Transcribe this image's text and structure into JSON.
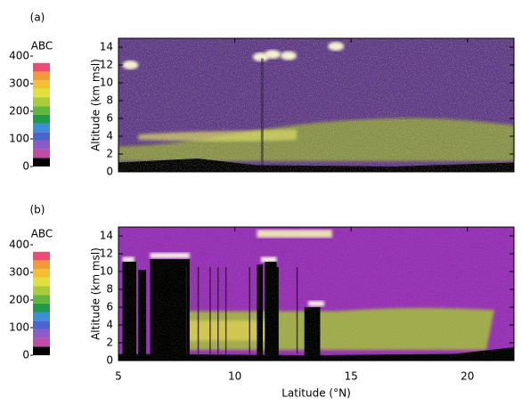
{
  "chart_data": [
    {
      "type": "curtain",
      "panel_label": "(a)",
      "ylabel": "Altitude (km msl)",
      "xlim": [
        5,
        22
      ],
      "xticks": [
        5,
        10,
        15,
        20
      ],
      "ylim": [
        0,
        15
      ],
      "yticks": [
        0,
        2,
        4,
        6,
        8,
        10,
        12,
        14
      ],
      "colorbar": {
        "label": "ABC",
        "clim": [
          0,
          375
        ],
        "ticks": [
          0,
          100,
          200,
          300,
          400
        ],
        "colors": [
          "#000000",
          "#c04ca8",
          "#8a5cc4",
          "#4a64d0",
          "#3c8ed8",
          "#1e9a48",
          "#5fb83c",
          "#a8cc3c",
          "#e0e040",
          "#f2c030",
          "#f29a38",
          "#ee4a78"
        ]
      }
    },
    {
      "type": "curtain",
      "panel_label": "(b)",
      "ylabel": "Altitude (km msl)",
      "xlabel": "Latitude (°N)",
      "xlim": [
        5,
        22
      ],
      "xticks": [
        5,
        10,
        15,
        20
      ],
      "ylim": [
        0,
        15
      ],
      "yticks": [
        0,
        2,
        4,
        6,
        8,
        10,
        12,
        14
      ],
      "colorbar": {
        "label": "ABC",
        "clim": [
          0,
          375
        ],
        "ticks": [
          0,
          100,
          200,
          300,
          400
        ],
        "colors": [
          "#000000",
          "#c04ca8",
          "#8a5cc4",
          "#4a64d0",
          "#3c8ed8",
          "#1e9a48",
          "#5fb83c",
          "#a8cc3c",
          "#e0e040",
          "#f2c030",
          "#f29a38",
          "#ee4a78"
        ]
      }
    }
  ]
}
